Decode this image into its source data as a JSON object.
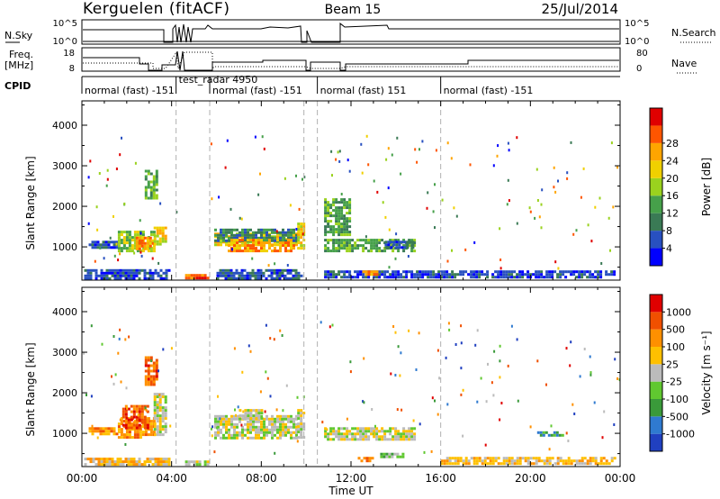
{
  "header": {
    "station": "Kerguelen (fitACF)",
    "beam": "Beam 15",
    "date": "25/Jul/2014"
  },
  "strip_labels": {
    "nsky": "N.Sky",
    "nsearch": "N.Search",
    "freq_line1": "Freq.",
    "freq_line2": "[MHz]",
    "nave": "Nave",
    "cpid": "CPID",
    "nsky_ticks": [
      "10^5",
      "10^0"
    ],
    "nsearch_ticks": [
      "10^5",
      "10^0"
    ],
    "freq_ticks": [
      "18",
      "8"
    ],
    "nave_ticks": [
      "80",
      "0"
    ]
  },
  "cpid_segments": [
    {
      "label": "normal (fast) -151",
      "start": 0,
      "end": 4.2
    },
    {
      "label": "test_radar 4950",
      "start": 4.2,
      "end": 5.7
    },
    {
      "label": "normal (fast) -151",
      "start": 5.7,
      "end": 9.9
    },
    {
      "label": "normal (fast) 151",
      "start": 10.5,
      "end": 16.0
    },
    {
      "label": "normal (fast) -151",
      "start": 16.0,
      "end": 24.0
    }
  ],
  "x_axis": {
    "label": "Time UT",
    "ticks": [
      "00:00",
      "04:00",
      "08:00",
      "12:00",
      "16:00",
      "20:00",
      "00:00"
    ]
  },
  "colors": {
    "background": "#ffffff",
    "frame": "#000000",
    "mode_change_line": "#b0b0b0"
  },
  "chart_data": [
    {
      "type": "heatmap",
      "name": "power",
      "ylabel": "Slant Range [km]",
      "xlabel": "",
      "xlim": [
        0,
        24
      ],
      "ylim": [
        180,
        4600
      ],
      "yticks": [
        "1000",
        "2000",
        "3000",
        "4000"
      ],
      "colorbar": {
        "label": "Power [dB]",
        "ticks": [
          "4",
          "8",
          "12",
          "16",
          "20",
          "24",
          "28"
        ],
        "colors": [
          "#0000ff",
          "#2850c0",
          "#3a7a55",
          "#46a04a",
          "#9ad21e",
          "#f0d000",
          "#ffa500",
          "#ff5500",
          "#e00000"
        ]
      },
      "mode_change_lines": [
        4.2,
        5.7,
        9.9,
        10.5,
        16.0
      ],
      "echo_regions": [
        {
          "t": [
            0.3,
            1.6
          ],
          "r": [
            1000,
            1150
          ],
          "level": 1
        },
        {
          "t": [
            1.6,
            3.2
          ],
          "r": [
            900,
            1400
          ],
          "level": 4
        },
        {
          "t": [
            2.4,
            3.2
          ],
          "r": [
            950,
            1250
          ],
          "level": 6
        },
        {
          "t": [
            3.2,
            3.8
          ],
          "r": [
            1050,
            1500
          ],
          "level": 5
        },
        {
          "t": [
            2.8,
            3.4
          ],
          "r": [
            2200,
            2900
          ],
          "level": 3
        },
        {
          "t": [
            0.1,
            3.9
          ],
          "r": [
            250,
            450
          ],
          "level": 1
        },
        {
          "t": [
            4.6,
            5.6
          ],
          "r": [
            250,
            330
          ],
          "level": 7
        },
        {
          "t": [
            5.9,
            9.6
          ],
          "r": [
            1050,
            1350
          ],
          "level": 5
        },
        {
          "t": [
            5.9,
            9.6
          ],
          "r": [
            1150,
            1450
          ],
          "level": 2
        },
        {
          "t": [
            6.5,
            9.5
          ],
          "r": [
            900,
            1200
          ],
          "level": 6
        },
        {
          "t": [
            9.6,
            9.9
          ],
          "r": [
            1000,
            1600
          ],
          "level": 5
        },
        {
          "t": [
            6.0,
            9.8
          ],
          "r": [
            250,
            450
          ],
          "level": 1
        },
        {
          "t": [
            10.8,
            14.8
          ],
          "r": [
            900,
            1200
          ],
          "level": 3
        },
        {
          "t": [
            10.8,
            12.0
          ],
          "r": [
            1300,
            2200
          ],
          "level": 3
        },
        {
          "t": [
            13.5,
            14.8
          ],
          "r": [
            1000,
            1150
          ],
          "level": 1
        },
        {
          "t": [
            10.8,
            23.8
          ],
          "r": [
            250,
            420
          ],
          "level": 1
        },
        {
          "t": [
            12.5,
            13.2
          ],
          "r": [
            320,
            420
          ],
          "level": 6
        }
      ]
    },
    {
      "type": "heatmap",
      "name": "velocity",
      "ylabel": "Slant Range [km]",
      "xlabel": "Time UT",
      "xlim": [
        0,
        24
      ],
      "ylim": [
        180,
        4600
      ],
      "yticks": [
        "1000",
        "2000",
        "3000",
        "4000"
      ],
      "colorbar": {
        "label": "Velocity [m s⁻¹]",
        "ticks": [
          "1000",
          "500",
          "100",
          "25",
          "-25",
          "-100",
          "-500",
          "-1000"
        ],
        "colors": [
          "#2040c0",
          "#2f7ad0",
          "#3a9a3a",
          "#60c830",
          "#bbbbbb",
          "#ffc000",
          "#ff9000",
          "#f05000",
          "#e00000"
        ]
      },
      "mode_change_lines": [
        4.2,
        5.7,
        9.9,
        10.5,
        16.0
      ],
      "echo_regions": [
        {
          "t": [
            0.3,
            1.6
          ],
          "r": [
            1000,
            1150
          ],
          "level": 6
        },
        {
          "t": [
            1.6,
            3.2
          ],
          "r": [
            900,
            1400
          ],
          "level": 6
        },
        {
          "t": [
            1.8,
            3.0
          ],
          "r": [
            1150,
            1700
          ],
          "level": 7
        },
        {
          "t": [
            3.2,
            3.8
          ],
          "r": [
            1000,
            2000
          ],
          "level": 4
        },
        {
          "t": [
            2.8,
            3.4
          ],
          "r": [
            2200,
            2900
          ],
          "level": 7
        },
        {
          "t": [
            0.1,
            3.9
          ],
          "r": [
            250,
            400
          ],
          "level": 5
        },
        {
          "t": [
            4.6,
            5.6
          ],
          "r": [
            250,
            330
          ],
          "level": 4
        },
        {
          "t": [
            5.9,
            9.6
          ],
          "r": [
            900,
            1450
          ],
          "level": 4
        },
        {
          "t": [
            7.0,
            8.0
          ],
          "r": [
            1400,
            1600
          ],
          "level": 4
        },
        {
          "t": [
            9.6,
            9.9
          ],
          "r": [
            900,
            1600
          ],
          "level": 4
        },
        {
          "t": [
            10.8,
            14.8
          ],
          "r": [
            850,
            1150
          ],
          "level": 4
        },
        {
          "t": [
            13.3,
            14.3
          ],
          "r": [
            420,
            520
          ],
          "level": 3
        },
        {
          "t": [
            12.3,
            13.0
          ],
          "r": [
            330,
            420
          ],
          "level": 6
        },
        {
          "t": [
            16.0,
            23.8
          ],
          "r": [
            250,
            420
          ],
          "level": 5
        },
        {
          "t": [
            20.3,
            21.5
          ],
          "r": [
            950,
            1050
          ],
          "level": 2
        }
      ]
    }
  ]
}
